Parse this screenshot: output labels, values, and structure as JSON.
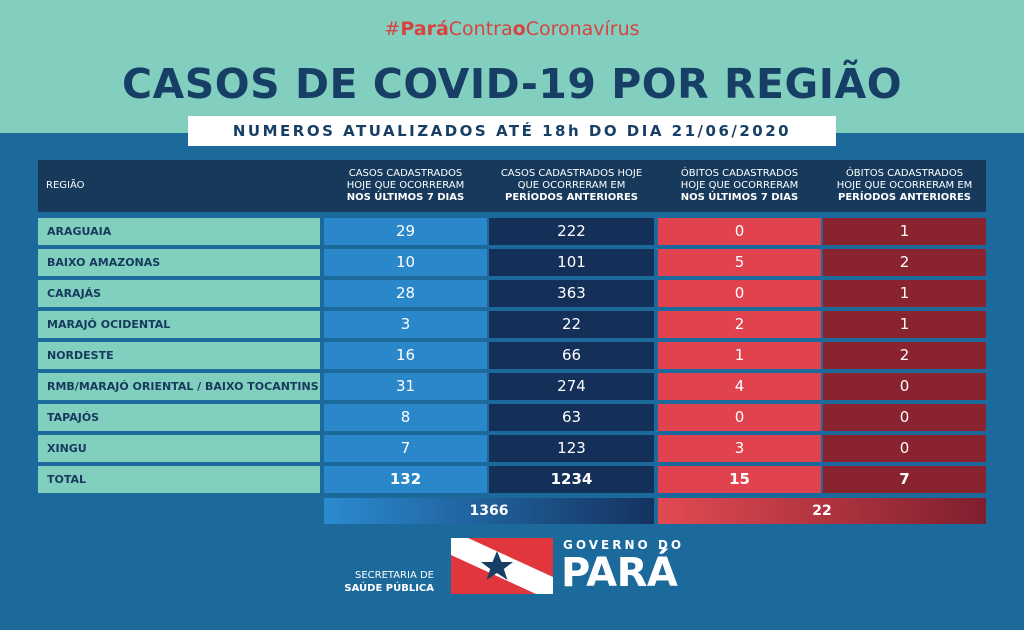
{
  "header": {
    "hashtag_pre": "#",
    "hashtag_para": "Pará",
    "hashtag_contra": "Contra",
    "hashtag_o": "o",
    "hashtag_corona": "Coronavírus",
    "title": "CASOS DE COVID-19 POR REGIÃO",
    "subtitle": "NUMEROS ATUALIZADOS ATÉ 18h DO DIA 21/06/2020"
  },
  "table": {
    "region_header": "REGIÃO",
    "columns": [
      {
        "l1": "CASOS CADASTRADOS",
        "l2": "HOJE QUE OCORRERAM",
        "l3": "NOS ÚLTIMOS 7 DIAS"
      },
      {
        "l1": "CASOS CADASTRADOS HOJE",
        "l2": "QUE OCORRERAM EM",
        "l3": "PERÍODOS ANTERIORES"
      },
      {
        "l1": "ÓBITOS CADASTRADOS",
        "l2": "HOJE QUE OCORRERAM",
        "l3": "NOS ÚLTIMOS 7 DIAS"
      },
      {
        "l1": "ÓBITOS CADASTRADOS",
        "l2": "HOJE QUE OCORRERAM EM",
        "l3": "PERÍODOS ANTERIORES"
      }
    ],
    "rows": [
      {
        "region": "ARAGUAIA",
        "c1": "29",
        "c2": "222",
        "c3": "0",
        "c4": "1"
      },
      {
        "region": "BAIXO AMAZONAS",
        "c1": "10",
        "c2": "101",
        "c3": "5",
        "c4": "2"
      },
      {
        "region": "CARAJÁS",
        "c1": "28",
        "c2": "363",
        "c3": "0",
        "c4": "1"
      },
      {
        "region": "MARAJÓ OCIDENTAL",
        "c1": "3",
        "c2": "22",
        "c3": "2",
        "c4": "1"
      },
      {
        "region": "NORDESTE",
        "c1": "16",
        "c2": "66",
        "c3": "1",
        "c4": "2"
      },
      {
        "region": "RMB/MARAJÓ ORIENTAL / BAIXO TOCANTINS",
        "c1": "31",
        "c2": "274",
        "c3": "4",
        "c4": "0"
      },
      {
        "region": "TAPAJÓS",
        "c1": "8",
        "c2": "63",
        "c3": "0",
        "c4": "0"
      },
      {
        "region": "XINGU",
        "c1": "7",
        "c2": "123",
        "c3": "3",
        "c4": "0"
      }
    ],
    "total": {
      "region": "TOTAL",
      "c1": "132",
      "c2": "1234",
      "c3": "15",
      "c4": "7"
    },
    "sum_cases": "1366",
    "sum_deaths": "22"
  },
  "footer": {
    "secretaria_l1": "SECRETARIA DE",
    "secretaria_l2": "SAÚDE PÚBLICA",
    "gov_l1": "GOVERNO DO",
    "gov_l2": "PARÁ"
  },
  "colors": {
    "teal": "#82cfc0",
    "navy": "#173a5c",
    "blue": "#2a87c9",
    "red": "#e0434d",
    "dark_red": "#8a2330"
  }
}
